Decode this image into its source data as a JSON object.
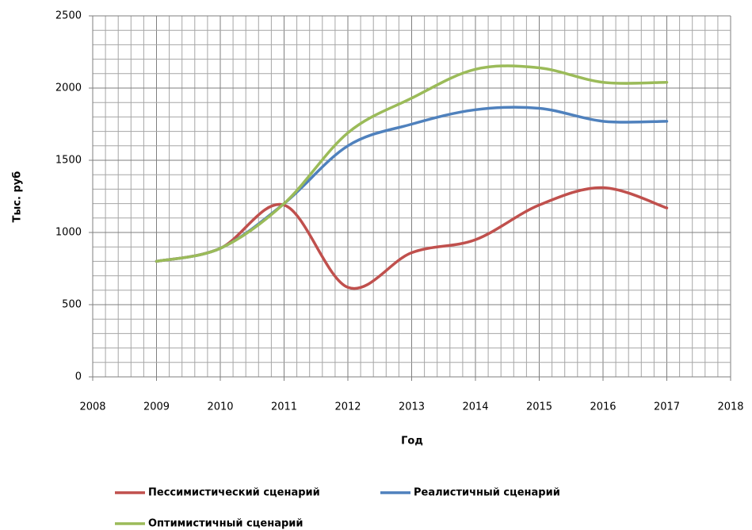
{
  "chart_data": {
    "type": "line",
    "x_title": "Год",
    "y_title": "Тыс. руб",
    "x": [
      2009,
      2010,
      2011,
      2012,
      2013,
      2014,
      2015,
      2016,
      2017
    ],
    "series": [
      {
        "name": "Пессимистический сценарий",
        "color": "#c0504d",
        "values": [
          800,
          890,
          1190,
          620,
          860,
          950,
          1190,
          1310,
          1170
        ]
      },
      {
        "name": "Реалистичный сценарий",
        "color": "#4f81bd",
        "values": [
          800,
          890,
          1200,
          1600,
          1750,
          1850,
          1860,
          1770,
          1770
        ]
      },
      {
        "name": "Оптимистичный сценарий",
        "color": "#9bbb59",
        "values": [
          800,
          890,
          1200,
          1690,
          1930,
          2130,
          2140,
          2040,
          2040
        ]
      }
    ],
    "xlim": [
      2008,
      2018
    ],
    "xticks": [
      2008,
      2009,
      2010,
      2011,
      2012,
      2013,
      2014,
      2015,
      2016,
      2017,
      2018
    ],
    "ylim": [
      0,
      2500
    ],
    "yticks": [
      0,
      500,
      1000,
      1500,
      2000,
      2500
    ],
    "grid": true,
    "minor_divisions": 5,
    "smooth": true,
    "legend": "bottom"
  }
}
